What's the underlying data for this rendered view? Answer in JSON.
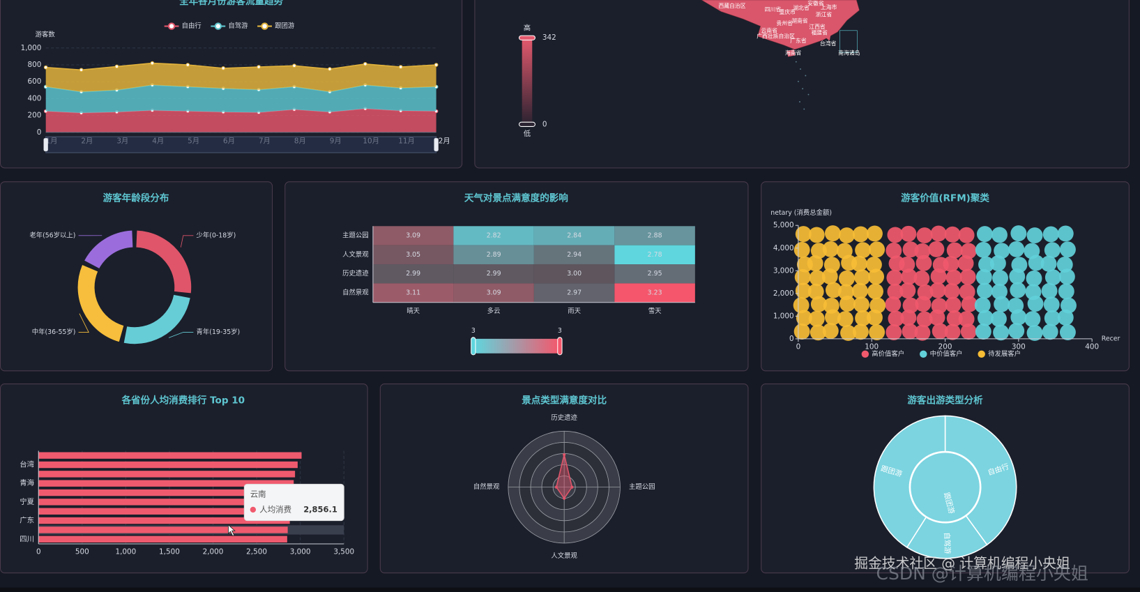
{
  "chart_data": [
    {
      "type": "area",
      "title": "全年各月份游客流量趋势",
      "y_axis_label": "游客数",
      "categories": [
        "1月",
        "2月",
        "3月",
        "4月",
        "5月",
        "6月",
        "7月",
        "8月",
        "9月",
        "10月",
        "11月",
        "12月"
      ],
      "series": [
        {
          "name": "自由行",
          "color": "#e0556a",
          "values": [
            250,
            230,
            240,
            260,
            250,
            240,
            235,
            270,
            240,
            280,
            255,
            250
          ]
        },
        {
          "name": "自驾游",
          "color": "#5cc3cc",
          "values": [
            290,
            250,
            260,
            300,
            290,
            280,
            270,
            270,
            240,
            280,
            270,
            290
          ]
        },
        {
          "name": "跟团游",
          "color": "#e2b33c",
          "values": [
            230,
            260,
            280,
            260,
            260,
            240,
            270,
            250,
            270,
            250,
            250,
            260
          ]
        }
      ],
      "stacked": true,
      "ylim": [
        0,
        1000
      ],
      "yticks": [
        0,
        200,
        400,
        600,
        800,
        {
          "value": 1000,
          "label": "1,000"
        }
      ],
      "grid": true,
      "legend": "top"
    },
    {
      "type": "map",
      "color": "#d9566b",
      "visual_map": {
        "range": [
          0,
          342
        ],
        "high_label": "高",
        "low_label": "低"
      },
      "regions": [
        "西藏自治区",
        "四川省",
        "重庆市",
        "湖北省",
        "安徽省",
        "上海市",
        "浙江省",
        "湖南省",
        "贵州省",
        "江西省",
        "云南省",
        "福建省",
        "广西壮族自治区",
        "台湾省",
        "广东省",
        "海南省",
        "南海诸岛"
      ]
    },
    {
      "type": "pie",
      "title": "游客年龄段分布",
      "categories": [
        "少年(0-18岁)",
        "青年(19-35岁)",
        "中年(36-55岁)",
        "老年(56岁以上)"
      ],
      "values": [
        26,
        25,
        27,
        17
      ],
      "colors": [
        "#e0556a",
        "#66cdd6",
        "#f6be3c",
        "#9b6ddc"
      ]
    },
    {
      "type": "heatmap",
      "title": "天气对景点满意度的影响",
      "x_categories": [
        "晴天",
        "多云",
        "雨天",
        "雪天"
      ],
      "y_categories": [
        "主题公园",
        "人文景观",
        "历史遗迹",
        "自然景观"
      ],
      "values": [
        [
          3.09,
          2.82,
          2.84,
          2.88
        ],
        [
          3.05,
          2.89,
          2.94,
          2.78
        ],
        [
          2.99,
          2.99,
          3.0,
          2.95
        ],
        [
          3.11,
          3.09,
          2.97,
          3.23
        ]
      ],
      "value_labels": [
        [
          "3.09",
          "2.82",
          "2.84",
          "2.88"
        ],
        [
          "3.05",
          "2.89",
          "2.94",
          "2.78"
        ],
        [
          "2.99",
          "2.99",
          "3.00",
          "2.95"
        ],
        [
          "3.11",
          "3.09",
          "2.97",
          "3.23"
        ]
      ],
      "visual_range": [
        {
          "value": 2.78,
          "label": "3"
        },
        {
          "value": 3.23,
          "label": "3"
        }
      ],
      "colors": [
        "#5fd6de",
        "#f5566b"
      ]
    },
    {
      "type": "scatter",
      "title": "游客价值(RFM)聚类",
      "y_axis_label": "netary (消费总金额)",
      "x_axis_label": "Recer",
      "xlim": [
        0,
        400
      ],
      "xticks": [
        0,
        100,
        200,
        300,
        400
      ],
      "ylim": [
        0,
        5000
      ],
      "yticks": [
        0,
        {
          "value": 1000,
          "label": "1,000"
        },
        {
          "value": 2000,
          "label": "2,000"
        },
        {
          "value": 3000,
          "label": "3,000"
        },
        {
          "value": 4000,
          "label": "4,000"
        },
        {
          "value": 5000,
          "label": "5,000"
        }
      ],
      "legend": "bottom",
      "series": [
        {
          "name": "高价值客户",
          "color": "#f0596c",
          "x": [
            130,
            152,
            169,
            193,
            210,
            232,
            133,
            150,
            172,
            189,
            213,
            229,
            129,
            153,
            170,
            192,
            211,
            233,
            132,
            149,
            173,
            190,
            209,
            230,
            131,
            151,
            168,
            191,
            212,
            231,
            134,
            148,
            171,
            194,
            208,
            228,
            130,
            153,
            169,
            188,
            213,
            232,
            132,
            150,
            172,
            191,
            210,
            229
          ],
          "values": [
            290,
            330,
            270,
            340,
            300,
            320,
            890,
            930,
            860,
            940,
            900,
            870,
            1520,
            1470,
            1540,
            1450,
            1500,
            1530,
            2080,
            2130,
            2050,
            2140,
            2100,
            2070,
            2690,
            2740,
            2660,
            2750,
            2700,
            2730,
            3320,
            3270,
            3340,
            3260,
            3300,
            3330,
            3890,
            3940,
            3860,
            3950,
            3900,
            3870,
            4580,
            4630,
            4560,
            4640,
            4600,
            4570
          ]
        },
        {
          "name": "中价值客户",
          "color": "#62d0d9",
          "x": [
            252,
            276,
            297,
            322,
            343,
            367,
            255,
            273,
            300,
            319,
            346,
            364,
            251,
            277,
            296,
            323,
            345,
            368,
            254,
            274,
            299,
            320,
            342,
            365,
            253,
            275,
            298,
            321,
            347,
            366,
            256,
            272,
            301,
            324,
            341,
            363,
            252,
            277,
            297,
            318,
            346,
            367,
            254,
            274,
            300,
            322,
            344,
            364
          ],
          "values": [
            320,
            280,
            350,
            260,
            310,
            290,
            920,
            880,
            950,
            870,
            910,
            940,
            1480,
            1530,
            1460,
            1550,
            1510,
            1470,
            2120,
            2080,
            2150,
            2060,
            2110,
            2090,
            2720,
            2680,
            2750,
            2660,
            2710,
            2740,
            3280,
            3330,
            3260,
            3350,
            3310,
            3270,
            3920,
            3880,
            3950,
            3870,
            3910,
            3940,
            4620,
            4580,
            4650,
            4560,
            4610,
            4640
          ]
        },
        {
          "name": "待发展客户",
          "color": "#f7bd35",
          "x": [
            5,
            27,
            44,
            68,
            85,
            107,
            8,
            25,
            47,
            64,
            88,
            104,
            4,
            28,
            45,
            67,
            86,
            108,
            7,
            24,
            48,
            65,
            84,
            105,
            6,
            26,
            43,
            66,
            87,
            106,
            9,
            23,
            46,
            69,
            83,
            103,
            5,
            28,
            44,
            63,
            88,
            107,
            7,
            25,
            47,
            66,
            85,
            104
          ],
          "values": [
            320,
            280,
            350,
            260,
            310,
            290,
            920,
            880,
            950,
            870,
            910,
            940,
            1480,
            1530,
            1460,
            1550,
            1510,
            1470,
            2120,
            2080,
            2150,
            2060,
            2110,
            2090,
            2720,
            2680,
            2750,
            2660,
            2710,
            2740,
            3280,
            3330,
            3260,
            3350,
            3310,
            3270,
            3920,
            3880,
            3950,
            3870,
            3910,
            3940,
            4620,
            4580,
            4650,
            4560,
            4610,
            4640
          ]
        }
      ]
    },
    {
      "type": "bar",
      "horizontal": true,
      "title": "各省份人均消费排行 Top 10",
      "categories": [
        "四川",
        "云南",
        "广东",
        null,
        "宁夏",
        null,
        "青海",
        null,
        "台湾",
        null
      ],
      "axis_label_interval": 1,
      "series": [
        {
          "name": "人均消费",
          "color": "#f05a6e",
          "values": [
            2850,
            2856.1,
            2880,
            2895,
            2905,
            2915,
            2925,
            2940,
            2970,
            3015
          ],
          "value_labels": [
            null,
            "2,856.1",
            null,
            null,
            null,
            null,
            null,
            null,
            null,
            null
          ]
        }
      ],
      "xlim": [
        0,
        3500
      ],
      "xticks": [
        0,
        500,
        {
          "value": 1000,
          "label": "1,000"
        },
        {
          "value": 1500,
          "label": "1,500"
        },
        {
          "value": 2000,
          "label": "2,000"
        },
        {
          "value": 2500,
          "label": "2,500"
        },
        {
          "value": 3000,
          "label": "3,000"
        },
        {
          "value": 3500,
          "label": "3,500"
        }
      ]
    },
    {
      "type": "radar",
      "title": "景点类型满意度对比",
      "indicators": [
        {
          "name": "历史遗迹",
          "max": 5
        },
        {
          "name": "主题公园",
          "max": 5
        },
        {
          "name": "人文景观",
          "max": 5
        },
        {
          "name": "自然景观",
          "max": 5
        }
      ],
      "series": [
        {
          "color": "#e0556a",
          "values": [
            2.9,
            0.7,
            1.0,
            0.7
          ]
        }
      ]
    },
    {
      "type": "sunburst",
      "title": "游客出游类型分析",
      "center_label": "跟团游",
      "categories": [
        "自由行",
        "自驾游",
        "跟团游"
      ],
      "values": [
        40,
        19,
        41
      ],
      "color": "#7bd4e0"
    }
  ],
  "watermark": [
    "掘金技术社区 @ 计算机编程小央姐",
    "CSDN @计算机编程小央姐"
  ]
}
